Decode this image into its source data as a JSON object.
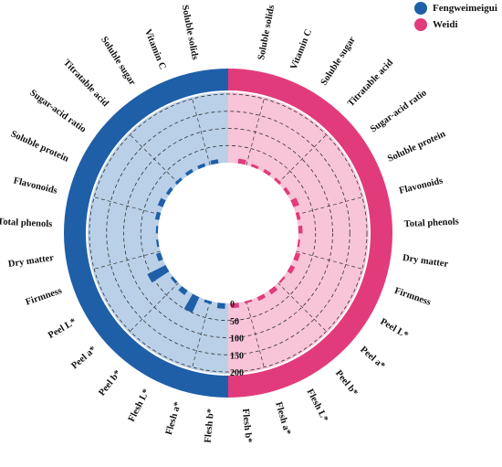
{
  "chart_data": {
    "type": "radial-bar",
    "title": "",
    "series": [
      {
        "name": "Fengweimeigui",
        "color": "#1f5fa8",
        "categories": [
          "Soluble solids",
          "Vitamin C",
          "Soluble sugar",
          "Titratable acid",
          "Sugar-acid ratio",
          "Soluble protein",
          "Flavonoids",
          "Total phenols",
          "Dry matter",
          "Firmness",
          "Peel L*",
          "Peel a*",
          "Peel b*",
          "Flesh L*",
          "Flesh a*",
          "Flesh b*"
        ],
        "values": [
          12,
          10,
          10,
          8,
          10,
          16,
          12,
          6,
          6,
          14,
          60,
          8,
          16,
          50,
          8,
          16
        ]
      },
      {
        "name": "Weidi",
        "color": "#e23b7c",
        "categories": [
          "Soluble solids",
          "Vitamin C",
          "Soluble sugar",
          "Titratable acid",
          "Sugar-acid ratio",
          "Soluble protein",
          "Flavonoids",
          "Total phenols",
          "Dry matter",
          "Firmness",
          "Peel L*",
          "Peel a*",
          "Peel b*",
          "Flesh L*",
          "Flesh a*",
          "Flesh b*"
        ],
        "values": [
          14,
          8,
          10,
          8,
          10,
          18,
          10,
          12,
          6,
          14,
          14,
          6,
          14,
          12,
          6,
          14
        ]
      }
    ],
    "radial_axis": {
      "ticks": [
        0,
        50,
        100,
        150,
        200
      ],
      "max": 200
    },
    "grid": true,
    "legend": "top-right"
  }
}
